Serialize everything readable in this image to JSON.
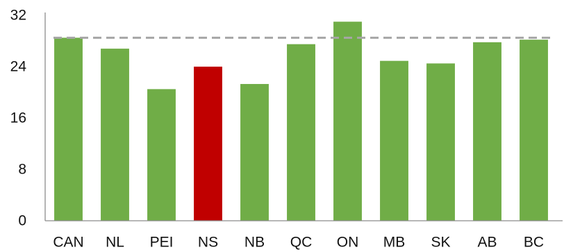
{
  "chart_data": {
    "type": "bar",
    "title": "",
    "xlabel": "",
    "ylabel": "",
    "categories": [
      "CAN",
      "NL",
      "PEI",
      "NS",
      "NB",
      "QC",
      "ON",
      "MB",
      "SK",
      "AB",
      "BC"
    ],
    "values": [
      28.5,
      26.8,
      20.5,
      24.0,
      21.3,
      27.5,
      31.0,
      24.9,
      24.5,
      27.8,
      28.2
    ],
    "highlight_category": "NS",
    "ylim": [
      0,
      32
    ],
    "yticks": [
      "0",
      "8",
      "16",
      "24",
      "32"
    ],
    "reference_line": {
      "value": 28.5,
      "style": "dashed",
      "color": "#a6a6a6"
    },
    "grid": false,
    "legend": "none",
    "colors": {
      "default_bar": "#70ad47",
      "highlight_bar": "#c00000"
    }
  }
}
